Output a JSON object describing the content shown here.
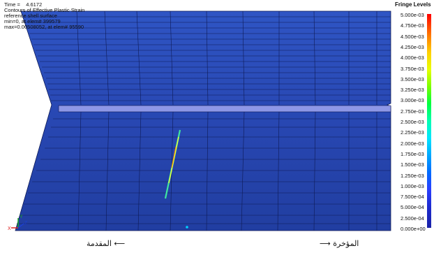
{
  "header": {
    "time_label": "Time =",
    "time_value": "4.6172",
    "title": "Contours of Effective Plastic Strain",
    "surface": "reference shell surface",
    "min_line": "min=0, at elem# 399579",
    "max_line": "max=0.00508052, at elem# 95590"
  },
  "legend": {
    "title": "Fringe Levels",
    "ticks": [
      "5.000e-03",
      "4.750e-03",
      "4.500e-03",
      "4.250e-03",
      "4.000e-03",
      "3.750e-03",
      "3.500e-03",
      "3.250e-03",
      "3.000e-03",
      "2.750e-03",
      "2.500e-03",
      "2.250e-03",
      "2.000e-03",
      "1.750e-03",
      "1.500e-03",
      "1.250e-03",
      "1.000e-03",
      "7.500e-04",
      "5.000e-04",
      "2.500e-04",
      "0.000e+00"
    ]
  },
  "axes": {
    "x": "X",
    "y": "Y",
    "z": "Z"
  },
  "captions": {
    "left": "المقدمة  ⟵",
    "right": "⟶  المؤخرة"
  },
  "colors": {
    "panel": "#2a4bb8",
    "panel_dark": "#233f9e",
    "band": "#8e97e6",
    "grid": "#0e1a55"
  }
}
